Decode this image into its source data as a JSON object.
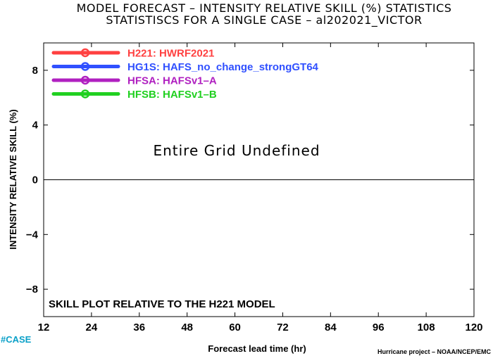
{
  "title_line1": "MODEL FORECAST – INTENSITY RELATIVE SKILL (%) STATISTICS",
  "title_line2": "STATISTISCS FOR A SINGLE CASE – al202021_VICTOR",
  "undefined_message": "Entire Grid Undefined",
  "skill_note": "SKILL PLOT RELATIVE TO THE H221 MODEL",
  "case_tag": "#CASE",
  "credit": "Hurricane project – NOAA/NCEP/EMC",
  "chart_data": {
    "type": "line",
    "xlabel": "Forecast lead time (hr)",
    "ylabel": "INTENSITY RELATIVE SKILL (%)",
    "xlim": [
      12,
      120
    ],
    "ylim": [
      -10,
      10
    ],
    "x_ticks": [
      12,
      24,
      36,
      48,
      60,
      72,
      84,
      96,
      108,
      120
    ],
    "y_ticks": [
      -8,
      -4,
      0,
      4,
      8
    ],
    "y_tick_labels": [
      "−8",
      "−4",
      "0",
      "4",
      "8"
    ],
    "zero_line": 0,
    "grid": false,
    "legend_position": "top-left",
    "series": [
      {
        "name": "H221: HWRF2021",
        "color": "#ff4040",
        "values": []
      },
      {
        "name": "HG1S: HAFS_no_change_strongGT64",
        "color": "#3050ff",
        "values": []
      },
      {
        "name": "HFSA: HAFSv1–A",
        "color": "#b020c0",
        "values": []
      },
      {
        "name": "HFSB: HAFSv1–B",
        "color": "#20d020",
        "values": []
      }
    ]
  }
}
